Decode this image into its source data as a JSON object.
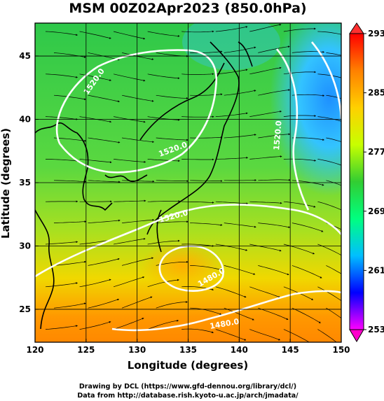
{
  "title": "MSM 00Z02Apr2023 (850.0hPa)",
  "xlabel": "Longitude (degrees)",
  "ylabel": "Latitude (degrees)",
  "credits": [
    "Drawing by DCL (https://www.gfd-dennou.org/library/dcl/)",
    "Data from http://database.rish.kyoto-u.ac.jp/arch/jmadata/"
  ],
  "x_ticks": [
    "120",
    "125",
    "130",
    "135",
    "140",
    "145",
    "150"
  ],
  "y_ticks": [
    "45",
    "40",
    "35",
    "30",
    "25"
  ],
  "colorbar": {
    "min": 253,
    "max": 293,
    "ticks": [
      "293",
      "285",
      "277",
      "269",
      "261",
      "253"
    ],
    "colors": [
      "#ff00ff",
      "#0000ff",
      "#00bfff",
      "#00ff7f",
      "#32cd32",
      "#c8ff00",
      "#ffd000",
      "#ff8000",
      "#ff0000"
    ]
  },
  "contour_labels": [
    "1520.0",
    "1520.0",
    "1520.0",
    "1520.0",
    "1480.0",
    "1480.0"
  ],
  "chart_data": {
    "type": "heatmap",
    "title": "MSM 00Z02Apr2023 (850.0hPa)",
    "xlabel": "Longitude (degrees)",
    "ylabel": "Latitude (degrees)",
    "xlim": [
      120,
      150
    ],
    "ylim": [
      22.4,
      47.6
    ],
    "color_range": [
      253,
      293
    ],
    "contour_levels": [
      1480.0,
      1520.0
    ],
    "overlays": [
      "temperature shading",
      "geopotential height contours",
      "wind streamlines",
      "coastlines"
    ]
  }
}
